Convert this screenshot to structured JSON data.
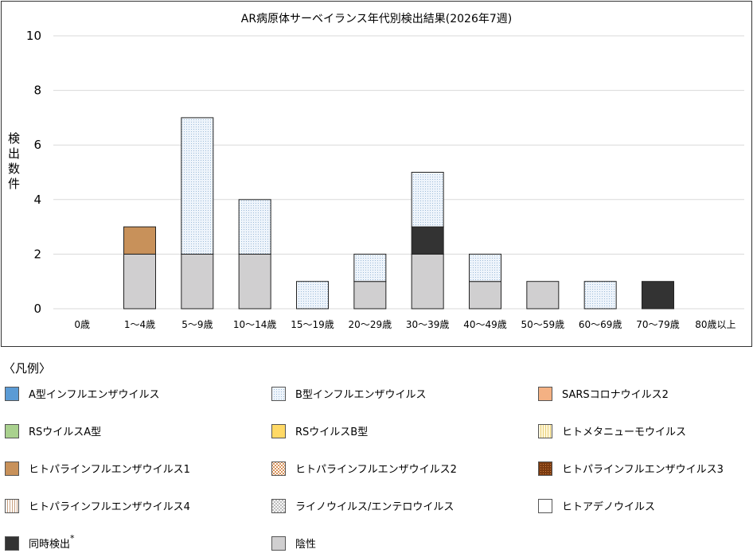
{
  "chart_data": {
    "type": "bar",
    "stacked": true,
    "title": "AR病原体サーベイランス年代別検出結果(2026年7週)",
    "xlabel": "",
    "ylabel": "検出数件",
    "ylim": [
      0,
      10
    ],
    "yticks": [
      0,
      2,
      4,
      6,
      8,
      10
    ],
    "grid": true,
    "categories": [
      "0歳",
      "1～4歳",
      "5～9歳",
      "10～14歳",
      "15～19歳",
      "20～29歳",
      "30～39歳",
      "40～49歳",
      "50～59歳",
      "60～69歳",
      "70～79歳",
      "80歳以上"
    ],
    "series": [
      {
        "name": "陰性",
        "color": "#d0cfd0",
        "pattern": "solid",
        "values": [
          0,
          2,
          2,
          2,
          0,
          1,
          2,
          1,
          1,
          0,
          0,
          0
        ]
      },
      {
        "name": "同時検出",
        "color": "#333333",
        "pattern": "solid",
        "values": [
          0,
          0,
          0,
          0,
          0,
          0,
          1,
          0,
          0,
          0,
          1,
          0
        ]
      },
      {
        "name": "ヒトパラインフルエンザウイルス1",
        "color": "#c8915a",
        "pattern": "solid",
        "values": [
          0,
          1,
          0,
          0,
          0,
          0,
          0,
          0,
          0,
          0,
          0,
          0
        ]
      },
      {
        "name": "B型インフルエンザウイルス",
        "color": "#dbe8f5",
        "pattern": "dots",
        "values": [
          0,
          0,
          5,
          2,
          1,
          1,
          2,
          1,
          0,
          1,
          0,
          0
        ]
      }
    ]
  },
  "legend": {
    "title": "〈凡例〉",
    "items": [
      {
        "label": "A型インフルエンザウイルス",
        "color": "#5b9bd5",
        "pattern": "solid"
      },
      {
        "label": "B型インフルエンザウイルス",
        "color": "#dbe8f5",
        "pattern": "dots"
      },
      {
        "label": "SARSコロナウイルス2",
        "color": "#f4b183",
        "pattern": "solid"
      },
      {
        "label": "RSウイルスA型",
        "color": "#a9d18e",
        "pattern": "solid"
      },
      {
        "label": "RSウイルスB型",
        "color": "#ffd966",
        "pattern": "solid"
      },
      {
        "label": "ヒトメタニューモウイルス",
        "color": "#fff2c0",
        "pattern": "vstripe-yellow"
      },
      {
        "label": "ヒトパラインフルエンザウイルス1",
        "color": "#c8915a",
        "pattern": "solid"
      },
      {
        "label": "ヒトパラインフルエンザウイルス2",
        "color": "#f0c8a0",
        "pattern": "check"
      },
      {
        "label": "ヒトパラインフルエンザウイルス3",
        "color": "#8b4513",
        "pattern": "dark-dots"
      },
      {
        "label": "ヒトパラインフルエンザウイルス4",
        "color": "#f5e6da",
        "pattern": "vstripe-brown"
      },
      {
        "label": "ライノウイルス/エンテロウイルス",
        "color": "#e0e0e0",
        "pattern": "cross"
      },
      {
        "label": "ヒトアデノウイルス",
        "color": "#ffffff",
        "pattern": "solid"
      },
      {
        "label": "同時検出",
        "color": "#333333",
        "pattern": "solid",
        "note": "*"
      },
      {
        "label": "陰性",
        "color": "#d0cfd0",
        "pattern": "solid"
      }
    ]
  }
}
